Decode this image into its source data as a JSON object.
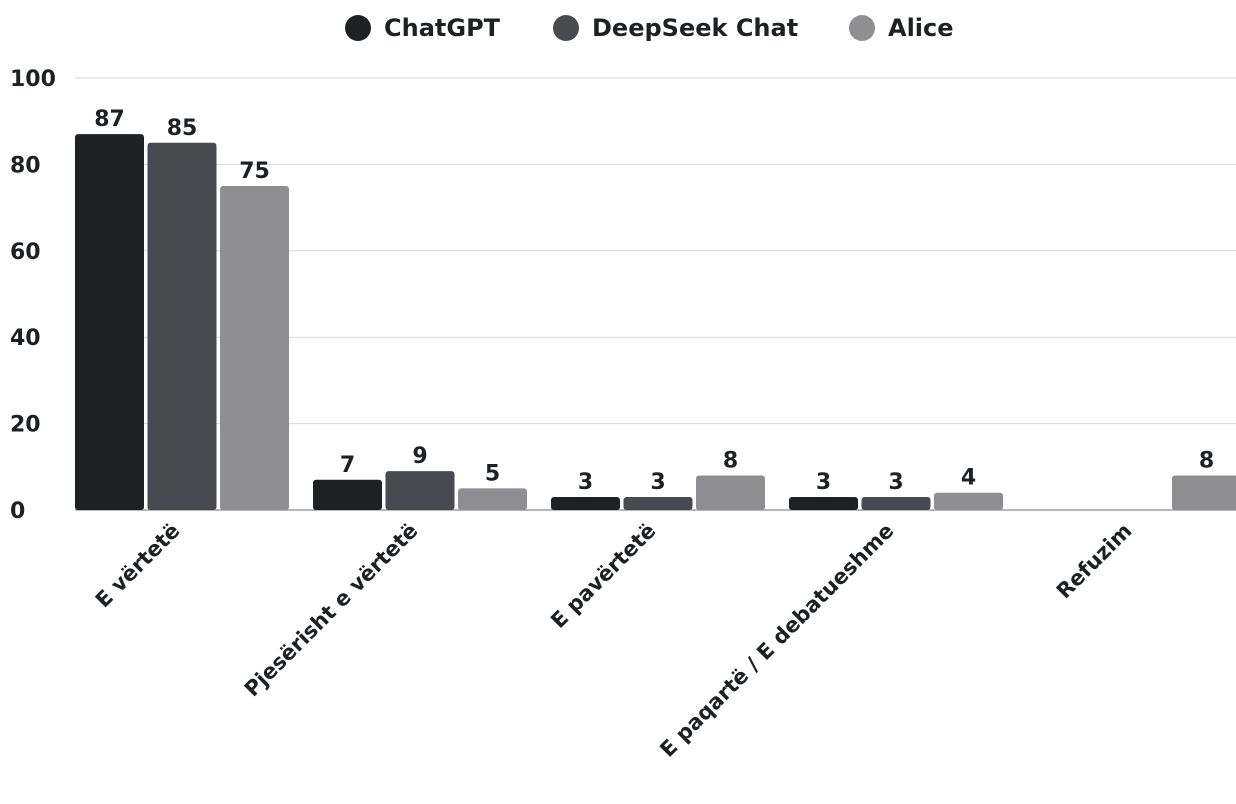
{
  "chart_data": {
    "type": "bar",
    "categories": [
      "E vërtetë",
      "Pjesërisht e vërtetë",
      "E pavërtetë",
      "E paqartë / E debatueshme",
      "Refuzim"
    ],
    "series": [
      {
        "name": "ChatGPT",
        "values": [
          87,
          7,
          3,
          3,
          0
        ],
        "color": "#1e2124"
      },
      {
        "name": "DeepSeek Chat",
        "values": [
          85,
          9,
          3,
          3,
          0
        ],
        "color": "#494950"
      },
      {
        "name": "Alice",
        "values": [
          75,
          5,
          8,
          4,
          8
        ],
        "color": "#8f8f91"
      }
    ],
    "title": "",
    "xlabel": "",
    "ylabel": "",
    "ylim": [
      0,
      100
    ],
    "yticks": [
      0,
      20,
      40,
      60,
      80,
      100
    ],
    "grid": true,
    "legend": "top-center",
    "show_value_labels": true
  }
}
